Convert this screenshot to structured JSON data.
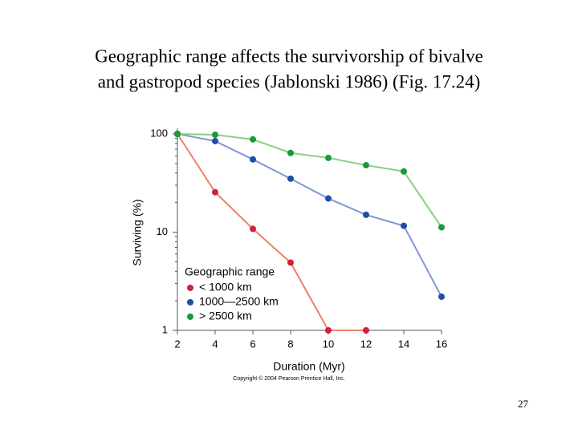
{
  "chart_data": {
    "type": "line",
    "title": [
      "Geographic range affects the survivorship of bivalve",
      "and gastropod species (Jablonski 1986) (Fig. 17.24)"
    ],
    "x_label": "Duration (Myr)",
    "y_label": "Surviving (%)",
    "x": [
      2,
      4,
      6,
      8,
      10,
      12,
      14,
      16
    ],
    "legend_title": "Geographic range",
    "series": [
      {
        "name": "< 1000 km",
        "color": "#d4203a",
        "line_color": "#ef7f68",
        "values": [
          100,
          25.5,
          10.8,
          4.9,
          1,
          1,
          null,
          null
        ]
      },
      {
        "name": "1000—2500 km",
        "color": "#1f4ea8",
        "line_color": "#7f97d8",
        "values": [
          100,
          84.5,
          55,
          35,
          22,
          15,
          11.6,
          2.2
        ]
      },
      {
        "name": "> 2500 km",
        "color": "#1a9a3a",
        "line_color": "#86d07f",
        "values": [
          100,
          98,
          88,
          64,
          57,
          48,
          41.5,
          11.2
        ]
      }
    ],
    "xlim": [
      2,
      16
    ],
    "xticks": [
      2,
      4,
      6,
      8,
      10,
      12,
      14,
      16
    ],
    "ylim": [
      1,
      100
    ],
    "yticks": [
      1,
      10,
      100
    ],
    "log_y": true,
    "minor_ticks": true,
    "copyright": "Copyright © 2004 Pearson Prentice Hall, Inc."
  },
  "page_number": "27"
}
